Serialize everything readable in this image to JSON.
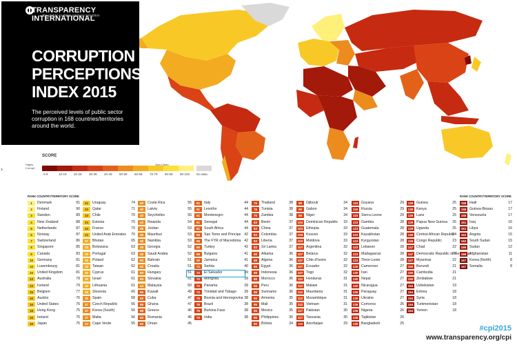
{
  "header": {
    "brand": "TRANSPARENCY INTERNATIONAL",
    "brand_tagline": "the global coalition against corruption",
    "title_lines": [
      "CORRUPTION",
      "PERCEPTIONS",
      "INDEX 2015"
    ],
    "description": "The perceived levels of public sector corruption in 168 countries/territories around the world."
  },
  "legend": {
    "title": "SCORE",
    "low_label": "Highly Corrupt",
    "high_label": "Very Clean",
    "no_data": "No data",
    "bins": [
      {
        "label": "0-9",
        "color": "#7f0a05"
      },
      {
        "label": "10-19",
        "color": "#a3190a"
      },
      {
        "label": "20-29",
        "color": "#c62a10"
      },
      {
        "label": "30-39",
        "color": "#d94315"
      },
      {
        "label": "40-49",
        "color": "#e2621a"
      },
      {
        "label": "50-59",
        "color": "#ec8b1e"
      },
      {
        "label": "60-69",
        "color": "#f3ab21"
      },
      {
        "label": "70-79",
        "color": "#f8c926"
      },
      {
        "label": "80-89",
        "color": "#fde03a"
      },
      {
        "label": "90-100",
        "color": "#fff07a"
      },
      {
        "label": "",
        "color": "#d9d9d9"
      }
    ]
  },
  "columns": [
    {
      "head": "RANK COUNTRY/TERRITORY SCORE",
      "rows": [
        [
          "1",
          "Denmark",
          "91"
        ],
        [
          "2",
          "Finland",
          "90"
        ],
        [
          "3",
          "Sweden",
          "89"
        ],
        [
          "4",
          "New Zealand",
          "88"
        ],
        [
          "5",
          "Netherlands",
          "87"
        ],
        [
          "5",
          "Norway",
          "87"
        ],
        [
          "7",
          "Switzerland",
          "86"
        ],
        [
          "8",
          "Singapore",
          "85"
        ],
        [
          "9",
          "Canada",
          "83"
        ],
        [
          "10",
          "Germany",
          "81"
        ],
        [
          "10",
          "Luxembourg",
          "81"
        ],
        [
          "10",
          "United Kingdom",
          "81"
        ],
        [
          "13",
          "Australia",
          "79"
        ],
        [
          "13",
          "Iceland",
          "79"
        ],
        [
          "15",
          "Belgium",
          "77"
        ],
        [
          "16",
          "Austria",
          "76"
        ],
        [
          "16",
          "United States",
          "76"
        ],
        [
          "18",
          "Hong Kong",
          "75"
        ],
        [
          "18",
          "Ireland",
          "75"
        ],
        [
          "18",
          "Japan",
          "75"
        ]
      ]
    },
    {
      "head": "",
      "rows": [
        [
          "21",
          "Uruguay",
          "74"
        ],
        [
          "22",
          "Qatar",
          "71"
        ],
        [
          "23",
          "Chile",
          "70"
        ],
        [
          "23",
          "Estonia",
          "70"
        ],
        [
          "23",
          "France",
          "70"
        ],
        [
          "23",
          "United Arab Emirates",
          "70"
        ],
        [
          "27",
          "Bhutan",
          "65"
        ],
        [
          "28",
          "Botswana",
          "63"
        ],
        [
          "28",
          "Portugal",
          "63"
        ],
        [
          "30",
          "Poland",
          "62"
        ],
        [
          "30",
          "Taiwan",
          "62"
        ],
        [
          "32",
          "Cyprus",
          "61"
        ],
        [
          "32",
          "Israel",
          "61"
        ],
        [
          "32",
          "Lithuania",
          "61"
        ],
        [
          "35",
          "Slovenia",
          "60"
        ],
        [
          "36",
          "Spain",
          "58"
        ],
        [
          "37",
          "Czech Republic",
          "56"
        ],
        [
          "37",
          "Korea (South)",
          "56"
        ],
        [
          "37",
          "Malta",
          "56"
        ],
        [
          "40",
          "Cape Verde",
          "55"
        ]
      ]
    },
    {
      "head": "",
      "rows": [
        [
          "40",
          "Costa Rica",
          "55"
        ],
        [
          "40",
          "Latvia",
          "55"
        ],
        [
          "40",
          "Seychelles",
          "55"
        ],
        [
          "44",
          "Rwanda",
          "54"
        ],
        [
          "45",
          "Jordan",
          "53"
        ],
        [
          "45",
          "Mauritius",
          "53"
        ],
        [
          "45",
          "Namibia",
          "53"
        ],
        [
          "48",
          "Georgia",
          "52"
        ],
        [
          "48",
          "Saudi Arabia",
          "52"
        ],
        [
          "50",
          "Bahrain",
          "51"
        ],
        [
          "50",
          "Croatia",
          "51"
        ],
        [
          "50",
          "Hungary",
          "51"
        ],
        [
          "50",
          "Slovakia",
          "51"
        ],
        [
          "54",
          "Malaysia",
          "50"
        ],
        [
          "55",
          "Kuwait",
          "49"
        ],
        [
          "56",
          "Cuba",
          "47"
        ],
        [
          "56",
          "Ghana",
          "47"
        ],
        [
          "58",
          "Greece",
          "46"
        ],
        [
          "58",
          "Romania",
          "46"
        ],
        [
          "60",
          "Oman",
          "45"
        ]
      ]
    },
    {
      "head": "",
      "rows": [
        [
          "61",
          "Italy",
          "44"
        ],
        [
          "61",
          "Lesotho",
          "44"
        ],
        [
          "61",
          "Montenegro",
          "44"
        ],
        [
          "61",
          "Senegal",
          "44"
        ],
        [
          "61",
          "South Africa",
          "44"
        ],
        [
          "66",
          "Sao Tome and Principe",
          "42"
        ],
        [
          "66",
          "The FYR of Macedonia",
          "42"
        ],
        [
          "66",
          "Turkey",
          "42"
        ],
        [
          "69",
          "Bulgaria",
          "41"
        ],
        [
          "69",
          "Jamaica",
          "41"
        ],
        [
          "71",
          "Serbia",
          "40"
        ],
        [
          "72",
          "El Salvador",
          "39"
        ],
        [
          "72",
          "Mongolia",
          "39"
        ],
        [
          "72",
          "Panama",
          "39"
        ],
        [
          "72",
          "Trinidad and Tobago",
          "39"
        ],
        [
          "76",
          "Bosnia and Herzegovina",
          "38"
        ],
        [
          "76",
          "Brazil",
          "38"
        ],
        [
          "76",
          "Burkina Faso",
          "38"
        ],
        [
          "76",
          "India",
          "38"
        ]
      ]
    },
    {
      "head": "",
      "rows": [
        [
          "76",
          "Thailand",
          "38"
        ],
        [
          "76",
          "Tunisia",
          "38"
        ],
        [
          "76",
          "Zambia",
          "38"
        ],
        [
          "83",
          "Benin",
          "37"
        ],
        [
          "83",
          "China",
          "37"
        ],
        [
          "83",
          "Colombia",
          "37"
        ],
        [
          "83",
          "Liberia",
          "37"
        ],
        [
          "83",
          "Sri Lanka",
          "37"
        ],
        [
          "88",
          "Albania",
          "36"
        ],
        [
          "88",
          "Algeria",
          "36"
        ],
        [
          "88",
          "Egypt",
          "36"
        ],
        [
          "88",
          "Indonesia",
          "36"
        ],
        [
          "88",
          "Morocco",
          "36"
        ],
        [
          "88",
          "Peru",
          "36"
        ],
        [
          "88",
          "Suriname",
          "36"
        ],
        [
          "95",
          "Armenia",
          "35"
        ],
        [
          "95",
          "Mali",
          "35"
        ],
        [
          "95",
          "Mexico",
          "35"
        ],
        [
          "95",
          "Philippines",
          "35"
        ],
        [
          "99",
          "Bolivia",
          "34"
        ]
      ]
    },
    {
      "head": "",
      "rows": [
        [
          "99",
          "Djibouti",
          "34"
        ],
        [
          "99",
          "Gabon",
          "34"
        ],
        [
          "99",
          "Niger",
          "34"
        ],
        [
          "103",
          "Dominican Republic",
          "33"
        ],
        [
          "103",
          "Ethiopia",
          "33"
        ],
        [
          "103",
          "Kosovo",
          "33"
        ],
        [
          "103",
          "Moldova",
          "33"
        ],
        [
          "107",
          "Argentina",
          "32"
        ],
        [
          "107",
          "Belarus",
          "32"
        ],
        [
          "107",
          "Côte d'Ivoire",
          "32"
        ],
        [
          "107",
          "Ecuador",
          "32"
        ],
        [
          "107",
          "Togo",
          "32"
        ],
        [
          "112",
          "Honduras",
          "31"
        ],
        [
          "112",
          "Malawi",
          "31"
        ],
        [
          "112",
          "Mauritania",
          "31"
        ],
        [
          "112",
          "Mozambique",
          "31"
        ],
        [
          "112",
          "Vietnam",
          "31"
        ],
        [
          "117",
          "Pakistan",
          "30"
        ],
        [
          "117",
          "Tanzania",
          "30"
        ],
        [
          "119",
          "Azerbaijan",
          "29"
        ]
      ]
    },
    {
      "head": "",
      "rows": [
        [
          "119",
          "Guyana",
          "29"
        ],
        [
          "119",
          "Russia",
          "29"
        ],
        [
          "119",
          "Sierra Leone",
          "29"
        ],
        [
          "123",
          "Gambia",
          "28"
        ],
        [
          "123",
          "Guatemala",
          "28"
        ],
        [
          "123",
          "Kazakhstan",
          "28"
        ],
        [
          "123",
          "Kyrgyzstan",
          "28"
        ],
        [
          "123",
          "Lebanon",
          "28"
        ],
        [
          "123",
          "Madagascar",
          "28"
        ],
        [
          "123",
          "Timor-Leste",
          "28"
        ],
        [
          "130",
          "Cameroon",
          "27"
        ],
        [
          "130",
          "Iran",
          "27"
        ],
        [
          "130",
          "Nepal",
          "27"
        ],
        [
          "130",
          "Nicaragua",
          "27"
        ],
        [
          "130",
          "Paraguay",
          "27"
        ],
        [
          "130",
          "Ukraine",
          "27"
        ],
        [
          "136",
          "Comoros",
          "26"
        ],
        [
          "136",
          "Nigeria",
          "26"
        ],
        [
          "136",
          "Tajikistan",
          "26"
        ],
        [
          "139",
          "Bangladesh",
          "25"
        ]
      ]
    },
    {
      "head": "",
      "rows": [
        [
          "139",
          "Guinea",
          "25"
        ],
        [
          "139",
          "Kenya",
          "25"
        ],
        [
          "139",
          "Laos",
          "25"
        ],
        [
          "139",
          "Papua New Guinea",
          "25"
        ],
        [
          "139",
          "Uganda",
          "25"
        ],
        [
          "145",
          "Central African Republic",
          "24"
        ],
        [
          "146",
          "Congo Republic",
          "23"
        ],
        [
          "147",
          "Chad",
          "22"
        ],
        [
          "147",
          "Democratic Republic of the Congo",
          "22"
        ],
        [
          "147",
          "Myanmar",
          "22"
        ],
        [
          "150",
          "Burundi",
          "21"
        ],
        [
          "150",
          "Cambodia",
          "21"
        ],
        [
          "150",
          "Zimbabwe",
          "21"
        ],
        [
          "153",
          "Uzbekistan",
          "19"
        ],
        [
          "154",
          "Eritrea",
          "18"
        ],
        [
          "154",
          "Syria",
          "18"
        ],
        [
          "154",
          "Turkmenistan",
          "18"
        ],
        [
          "154",
          "Yemen",
          "18"
        ]
      ]
    },
    {
      "head": "RANK COUNTRY/TERRITORY SCORE",
      "rows": [
        [
          "158",
          "Haiti",
          "17"
        ],
        [
          "158",
          "Guinea-Bissau",
          "17"
        ],
        [
          "158",
          "Venezuela",
          "17"
        ],
        [
          "161",
          "Iraq",
          "16"
        ],
        [
          "161",
          "Libya",
          "16"
        ],
        [
          "163",
          "Angola",
          "15"
        ],
        [
          "163",
          "South Sudan",
          "15"
        ],
        [
          "165",
          "Sudan",
          "12"
        ],
        [
          "166",
          "Afghanistan",
          "11"
        ],
        [
          "167",
          "Korea (North)",
          "8"
        ],
        [
          "167",
          "Somalia",
          "8"
        ]
      ]
    }
  ],
  "hashtag": "#cpi2015",
  "url": "www.transparency.org/cpi"
}
